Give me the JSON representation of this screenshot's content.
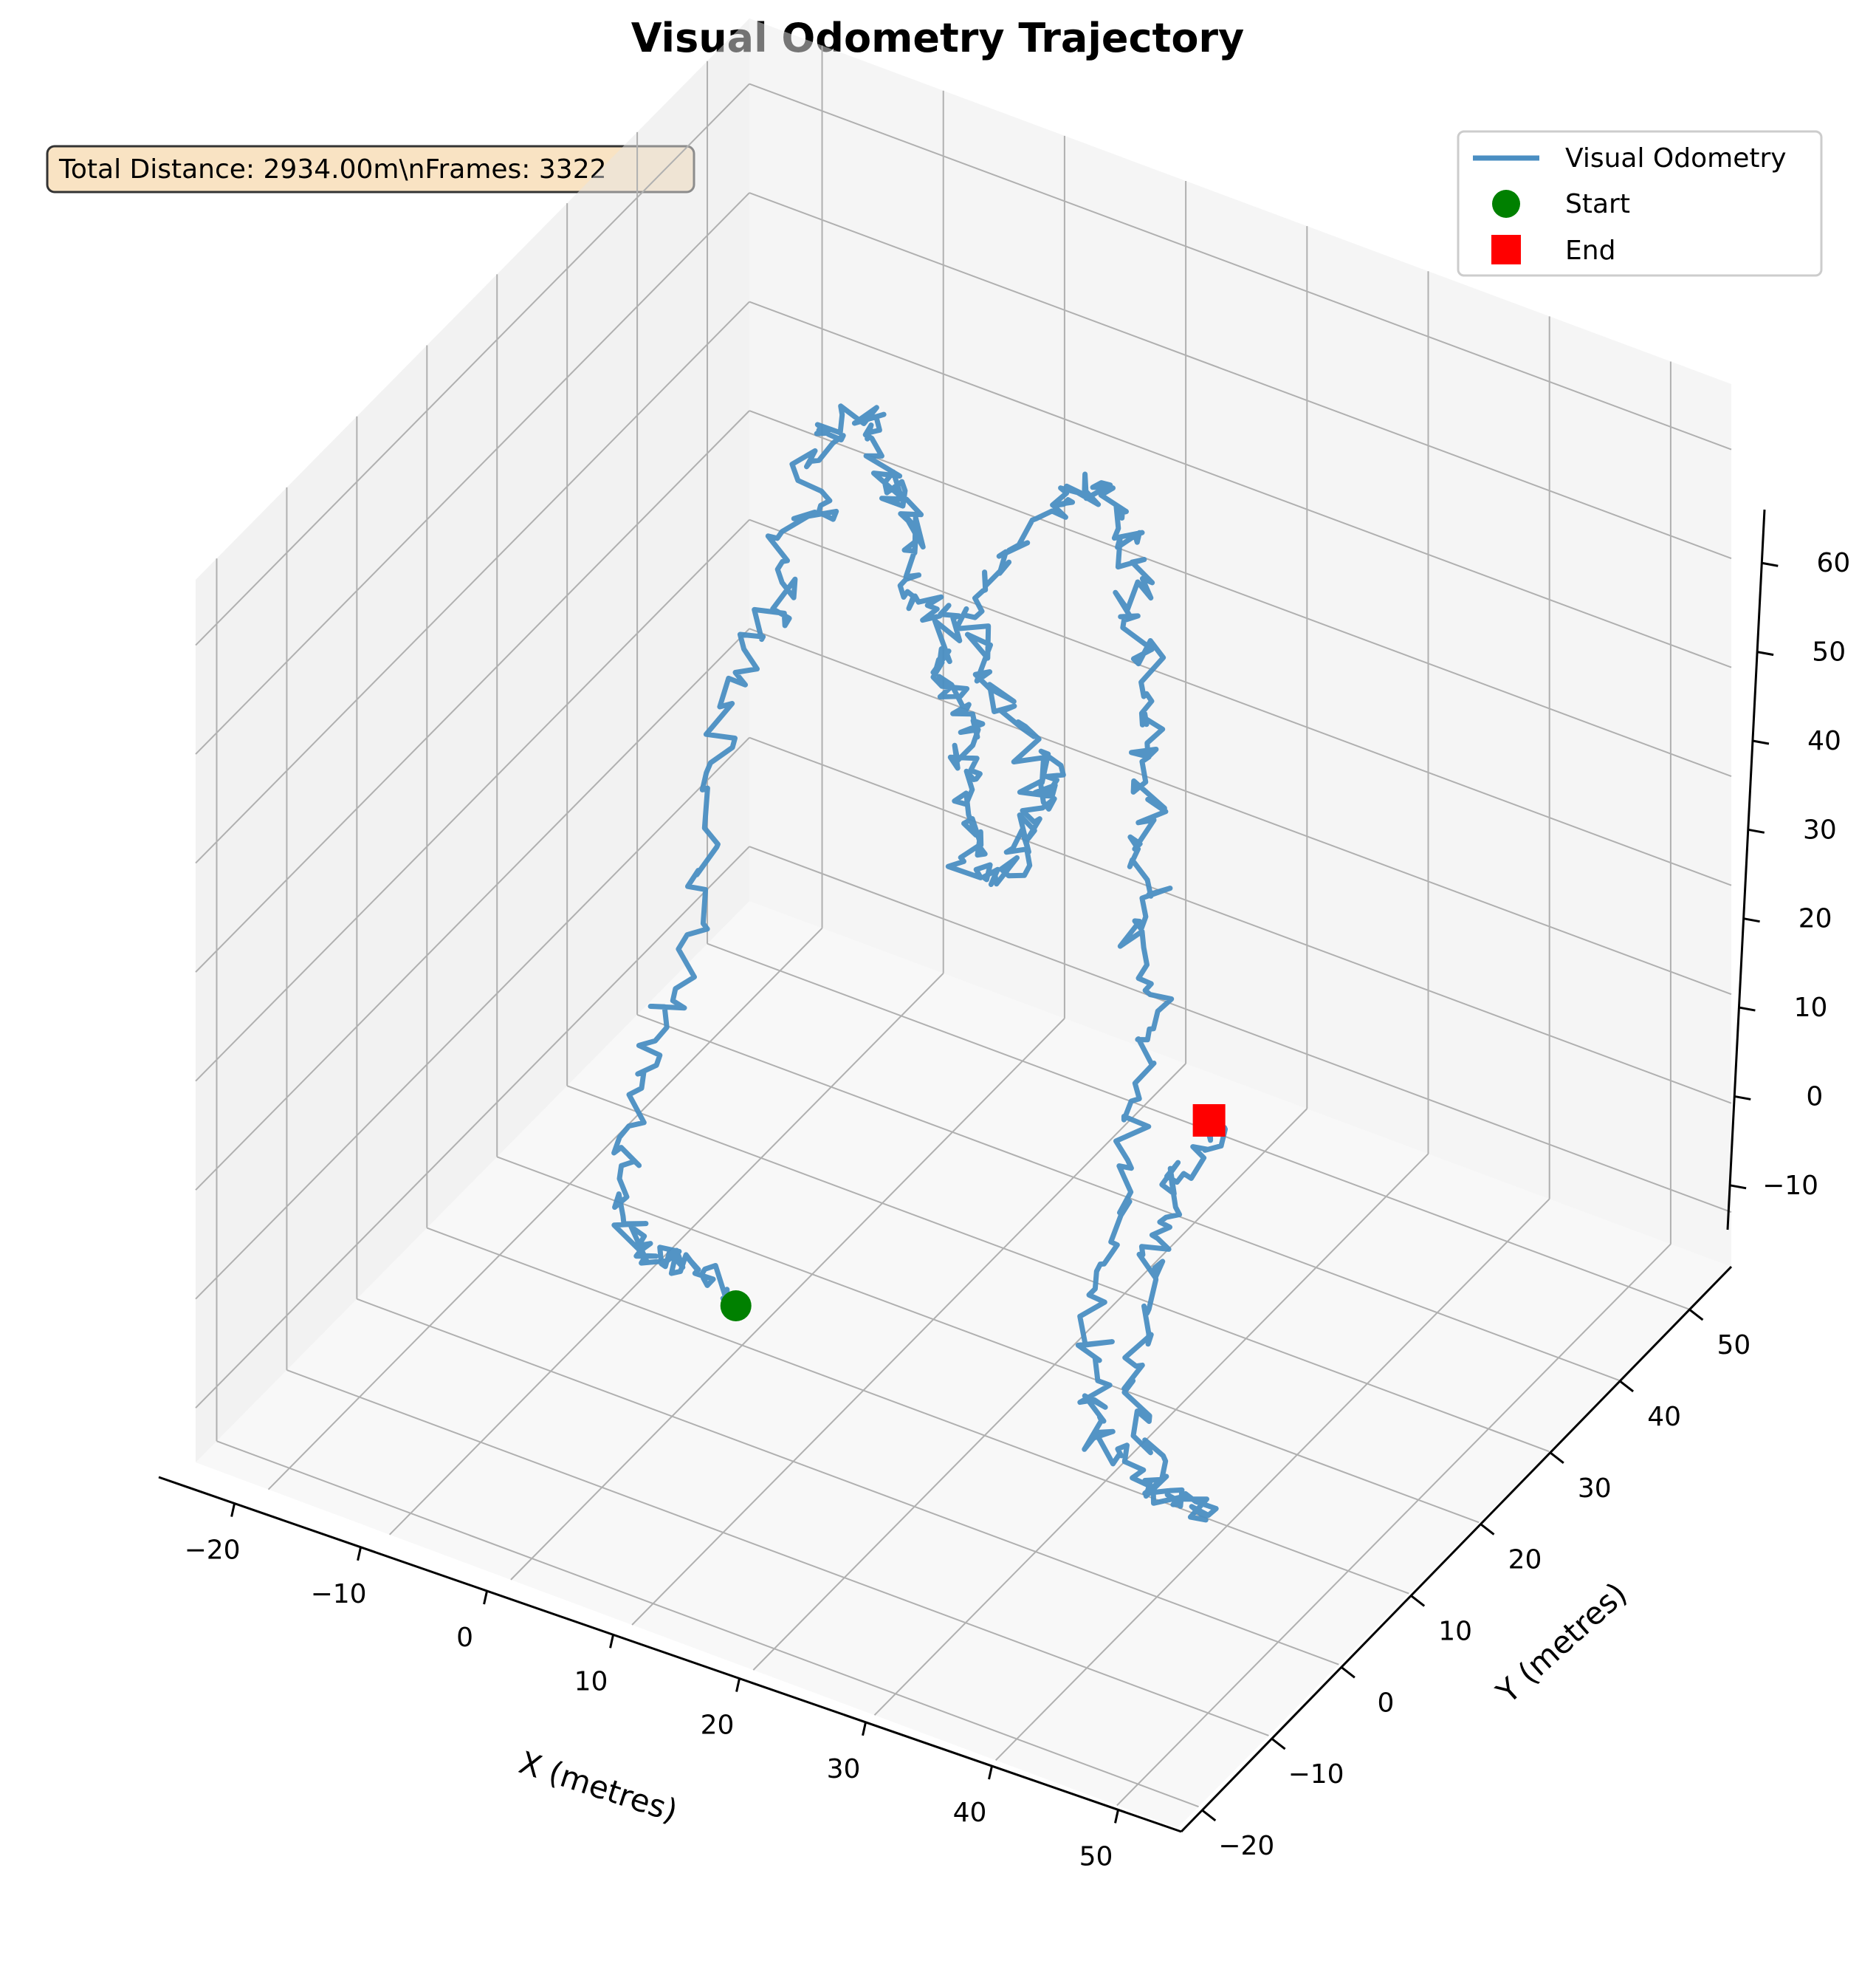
{
  "chart_data": {
    "type": "line3d",
    "title": "Visual Odometry Trajectory",
    "xlabel": "X (metres)",
    "ylabel": "Y (metres)",
    "zlabel": "",
    "xlim": [
      -26,
      55
    ],
    "ylim": [
      -23,
      56
    ],
    "zlim": [
      -15,
      66
    ],
    "xticks": [
      -20,
      -10,
      0,
      10,
      20,
      30,
      40,
      50
    ],
    "yticks": [
      -20,
      -10,
      0,
      10,
      20,
      30,
      40,
      50
    ],
    "zticks": [
      -10,
      0,
      10,
      20,
      30,
      40,
      50,
      60
    ],
    "grid": true,
    "legend_position": "top-right",
    "info_box": "Total Distance: 2934.00m\\nFrames: 3322",
    "series": [
      {
        "name": "Visual Odometry",
        "color": "#4a8ec2",
        "waypoints": [
          [
            7,
            -3,
            0
          ],
          [
            5,
            -1,
            -1
          ],
          [
            2,
            0,
            0
          ],
          [
            0,
            1,
            -1
          ],
          [
            -2,
            2,
            -3
          ],
          [
            -4,
            4,
            -5
          ],
          [
            -6,
            5,
            -4
          ],
          [
            -7,
            6,
            -2
          ],
          [
            -8,
            8,
            0
          ],
          [
            -9,
            10,
            3
          ],
          [
            -9,
            12,
            7
          ],
          [
            -8,
            14,
            12
          ],
          [
            -7,
            16,
            18
          ],
          [
            -7,
            18,
            24
          ],
          [
            -8,
            20,
            30
          ],
          [
            -7,
            21,
            36
          ],
          [
            -6,
            23,
            40
          ],
          [
            -4,
            24,
            43
          ],
          [
            -6,
            26,
            46
          ],
          [
            -3,
            27,
            49
          ],
          [
            -5,
            28,
            52
          ],
          [
            -2,
            28,
            55
          ],
          [
            -4,
            27,
            57
          ],
          [
            -1,
            27,
            59
          ],
          [
            1,
            28,
            58
          ],
          [
            0,
            29,
            55
          ],
          [
            2,
            29,
            53
          ],
          [
            1,
            30,
            50
          ],
          [
            3,
            30,
            48
          ],
          [
            2,
            29,
            45
          ],
          [
            4,
            29,
            43
          ],
          [
            3,
            31,
            41
          ],
          [
            5,
            31,
            39
          ],
          [
            4,
            30,
            37
          ],
          [
            6,
            30,
            35
          ],
          [
            5,
            32,
            33
          ],
          [
            7,
            31,
            31
          ],
          [
            6,
            30,
            29
          ],
          [
            8,
            30,
            27
          ],
          [
            7,
            29,
            25
          ],
          [
            9,
            29,
            23
          ],
          [
            8,
            28,
            21
          ],
          [
            10,
            28,
            20
          ],
          [
            12,
            29,
            21
          ],
          [
            11,
            30,
            23
          ],
          [
            13,
            30,
            25
          ],
          [
            12,
            31,
            27
          ],
          [
            14,
            31,
            29
          ],
          [
            13,
            30,
            31
          ],
          [
            11,
            30,
            33
          ],
          [
            9,
            31,
            35
          ],
          [
            7,
            32,
            37
          ],
          [
            5,
            33,
            39
          ],
          [
            6,
            34,
            42
          ],
          [
            8,
            35,
            45
          ],
          [
            10,
            36,
            48
          ],
          [
            12,
            36,
            51
          ],
          [
            14,
            35,
            53
          ],
          [
            16,
            34,
            54
          ],
          [
            18,
            34,
            52
          ],
          [
            17,
            35,
            49
          ],
          [
            19,
            35,
            47
          ],
          [
            18,
            34,
            44
          ],
          [
            20,
            34,
            41
          ],
          [
            19,
            33,
            38
          ],
          [
            21,
            33,
            35
          ],
          [
            20,
            32,
            32
          ],
          [
            22,
            31,
            29
          ],
          [
            21,
            30,
            26
          ],
          [
            23,
            29,
            23
          ],
          [
            22,
            28,
            20
          ],
          [
            24,
            27,
            17
          ],
          [
            25,
            25,
            14
          ],
          [
            26,
            22,
            11
          ],
          [
            27,
            19,
            8
          ],
          [
            28,
            15,
            5
          ],
          [
            29,
            11,
            2
          ],
          [
            31,
            7,
            -1
          ],
          [
            32,
            4,
            -3
          ],
          [
            34,
            2,
            -4
          ],
          [
            36,
            1,
            -4
          ],
          [
            38,
            1,
            -5
          ],
          [
            40,
            1,
            -6
          ],
          [
            42,
            2,
            -7
          ],
          [
            43,
            1,
            -7
          ],
          [
            41,
            0,
            -6
          ],
          [
            39,
            1,
            -4
          ],
          [
            37,
            3,
            -2
          ],
          [
            35,
            6,
            1
          ],
          [
            34,
            9,
            3
          ],
          [
            33,
            12,
            5
          ],
          [
            32,
            15,
            6
          ],
          [
            31,
            18,
            7
          ],
          [
            31,
            20,
            8
          ],
          [
            32,
            22,
            9
          ],
          [
            31,
            23,
            10
          ]
        ]
      },
      {
        "name": "Start",
        "color": "#008000",
        "marker": "circle",
        "point": [
          7,
          -3,
          0
        ]
      },
      {
        "name": "End",
        "color": "#ff0000",
        "marker": "square",
        "point": [
          31,
          23,
          10
        ]
      }
    ]
  }
}
